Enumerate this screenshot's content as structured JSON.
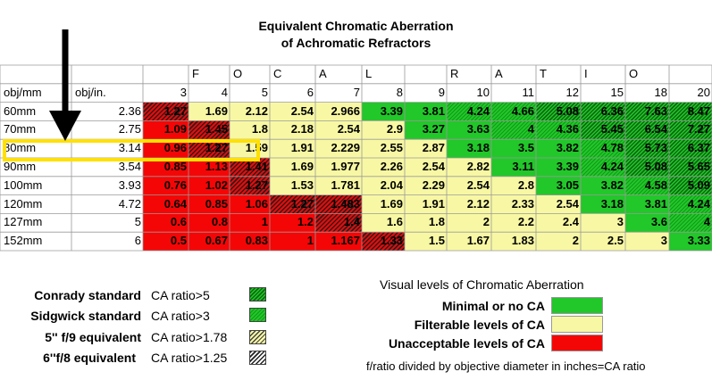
{
  "chart_data": {
    "type": "table",
    "title": "Equivalent Chromatic Aberration",
    "subtitle": "of Achromatic Refractors",
    "header_letters": [
      "F",
      "O",
      "C",
      "A",
      "L",
      "R",
      "A",
      "T",
      "I",
      "O"
    ],
    "col_header_mm": "obj/mm",
    "col_header_in": "obj/in.",
    "fratios": [
      "3",
      "4",
      "5",
      "6",
      "7",
      "8",
      "9",
      "10",
      "11",
      "12",
      "15",
      "18",
      "20"
    ],
    "rows": [
      {
        "mm": "60mm",
        "in": "2.36",
        "values": [
          "1.27",
          "1.69",
          "2.12",
          "2.54",
          "2.966",
          "3.39",
          "3.81",
          "4.24",
          "4.66",
          "5.08",
          "6.36",
          "7.63",
          "8.47"
        ]
      },
      {
        "mm": "70mm",
        "in": "2.75",
        "values": [
          "1.09",
          "1.45",
          "1.8",
          "2.18",
          "2.54",
          "2.9",
          "3.27",
          "3.63",
          "4",
          "4.36",
          "5.45",
          "6.54",
          "7.27"
        ]
      },
      {
        "mm": "80mm",
        "in": "3.14",
        "values": [
          "0.96",
          "1.27",
          "1.59",
          "1.91",
          "2.229",
          "2.55",
          "2.87",
          "3.18",
          "3.5",
          "3.82",
          "4.78",
          "5.73",
          "6.37"
        ]
      },
      {
        "mm": "90mm",
        "in": "3.54",
        "values": [
          "0.85",
          "1.13",
          "1.41",
          "1.69",
          "1.977",
          "2.26",
          "2.54",
          "2.82",
          "3.11",
          "3.39",
          "4.24",
          "5.08",
          "5.65"
        ]
      },
      {
        "mm": "100mm",
        "in": "3.93",
        "values": [
          "0.76",
          "1.02",
          "1.27",
          "1.53",
          "1.781",
          "2.04",
          "2.29",
          "2.54",
          "2.8",
          "3.05",
          "3.82",
          "4.58",
          "5.09"
        ]
      },
      {
        "mm": "120mm",
        "in": "4.72",
        "values": [
          "0.64",
          "0.85",
          "1.06",
          "1.27",
          "1.483",
          "1.69",
          "1.91",
          "2.12",
          "2.33",
          "2.54",
          "3.18",
          "3.81",
          "4.24"
        ]
      },
      {
        "mm": "127mm",
        "in": "5",
        "values": [
          "0.6",
          "0.8",
          "1",
          "1.2",
          "1.4",
          "1.6",
          "1.8",
          "2",
          "2.2",
          "2.4",
          "3",
          "3.6",
          "4"
        ]
      },
      {
        "mm": "152mm",
        "in": "6",
        "values": [
          "0.5",
          "0.67",
          "0.83",
          "1",
          "1.167",
          "1.33",
          "1.5",
          "1.67",
          "1.83",
          "2",
          "2.5",
          "3",
          "3.33"
        ]
      }
    ],
    "thresholds": [
      5,
      3,
      1.78,
      1.25
    ],
    "colors": {
      "green": "#22c72a",
      "yellow": "#f8f8a4",
      "red": "#f40606",
      "highlight": "#ffe000"
    }
  },
  "legend": {
    "standards": [
      {
        "label": "Conrady standard",
        "condition": "CA ratio>5",
        "pattern": "dg"
      },
      {
        "label": "Sidgwick standard",
        "condition": "CA ratio>3",
        "pattern": "lg"
      },
      {
        "label": "5'' f/9  equivalent",
        "condition": "CA ratio>1.78",
        "pattern": "yh"
      },
      {
        "label": "6''f/8 equivalent",
        "condition": "CA ratio>1.25",
        "pattern": "wh"
      }
    ],
    "visual_heading": "Visual levels of Chromatic Aberration",
    "visual_levels": [
      {
        "label": "Minimal or no CA",
        "color": "#22c72a"
      },
      {
        "label": "Filterable levels of CA",
        "color": "#f8f8a4"
      },
      {
        "label": "Unacceptable levels of CA",
        "color": "#f40606"
      }
    ],
    "footnote": "f/ratio divided by objective diameter in inches=CA ratio"
  }
}
